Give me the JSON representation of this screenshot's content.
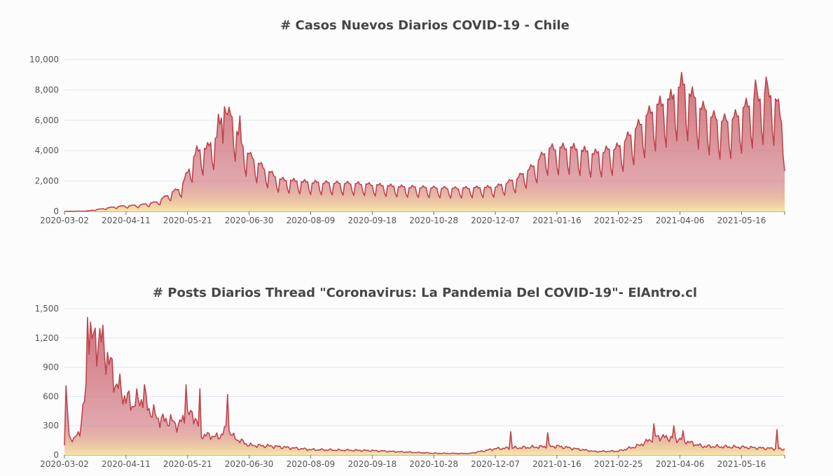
{
  "chart_data": [
    {
      "type": "area",
      "title": "# Casos Nuevos Diarios COVID-19 - Chile",
      "xlabel": "",
      "ylabel": "",
      "x_start": "2020-03-02",
      "x_end": "2021-06-13",
      "ylim": [
        0,
        10000
      ],
      "y_ticks": [
        "0",
        "2,000",
        "4,000",
        "6,000",
        "8,000",
        "10,000"
      ],
      "x_ticks": [
        "2020-03-02",
        "2020-04-11",
        "2020-05-21",
        "2020-06-30",
        "2020-08-09",
        "2020-09-18",
        "2020-10-28",
        "2020-12-07",
        "2021-01-16",
        "2021-02-25",
        "2021-04-06",
        "2021-05-16"
      ],
      "grid": true,
      "colors": {
        "line": "#bf444c",
        "fill_top": "#ce6e77",
        "fill_bottom": "#f7e6a8"
      },
      "keypoints": [
        {
          "x": "2020-03-02",
          "y": 0
        },
        {
          "x": "2020-03-16",
          "y": 20
        },
        {
          "x": "2020-03-25",
          "y": 150
        },
        {
          "x": "2020-04-05",
          "y": 330
        },
        {
          "x": "2020-04-20",
          "y": 420
        },
        {
          "x": "2020-05-01",
          "y": 620
        },
        {
          "x": "2020-05-10",
          "y": 1200
        },
        {
          "x": "2020-05-17",
          "y": 1600
        },
        {
          "x": "2020-05-21",
          "y": 2600
        },
        {
          "x": "2020-05-27",
          "y": 4000
        },
        {
          "x": "2020-06-03",
          "y": 4200
        },
        {
          "x": "2020-06-09",
          "y": 5000
        },
        {
          "x": "2020-06-14",
          "y": 6700
        },
        {
          "x": "2020-06-20",
          "y": 6000
        },
        {
          "x": "2020-06-25",
          "y": 4400
        },
        {
          "x": "2020-07-01",
          "y": 3600
        },
        {
          "x": "2020-07-10",
          "y": 2800
        },
        {
          "x": "2020-07-20",
          "y": 2100
        },
        {
          "x": "2020-08-10",
          "y": 1900
        },
        {
          "x": "2020-09-10",
          "y": 1800
        },
        {
          "x": "2020-10-10",
          "y": 1600
        },
        {
          "x": "2020-11-10",
          "y": 1500
        },
        {
          "x": "2020-12-07",
          "y": 1600
        },
        {
          "x": "2020-12-20",
          "y": 2100
        },
        {
          "x": "2021-01-01",
          "y": 3000
        },
        {
          "x": "2021-01-10",
          "y": 4100
        },
        {
          "x": "2021-01-25",
          "y": 4200
        },
        {
          "x": "2021-02-10",
          "y": 3800
        },
        {
          "x": "2021-02-25",
          "y": 4200
        },
        {
          "x": "2021-03-10",
          "y": 5600
        },
        {
          "x": "2021-03-20",
          "y": 6800
        },
        {
          "x": "2021-04-01",
          "y": 7500
        },
        {
          "x": "2021-04-07",
          "y": 8500
        },
        {
          "x": "2021-04-20",
          "y": 6800
        },
        {
          "x": "2021-05-01",
          "y": 5900
        },
        {
          "x": "2021-05-10",
          "y": 6000
        },
        {
          "x": "2021-05-20",
          "y": 7000
        },
        {
          "x": "2021-06-01",
          "y": 7700
        },
        {
          "x": "2021-06-08",
          "y": 7400
        },
        {
          "x": "2021-06-13",
          "y": 4600
        }
      ],
      "spikes": [
        {
          "x": "2021-04-07",
          "y": 9150
        },
        {
          "x": "2021-06-01",
          "y": 8850
        },
        {
          "x": "2021-05-25",
          "y": 8650
        },
        {
          "x": "2020-06-14",
          "y": 6900
        },
        {
          "x": "2020-06-10",
          "y": 6400
        },
        {
          "x": "2020-06-24",
          "y": 6300
        }
      ],
      "weekly_dip": 0.42
    },
    {
      "type": "area",
      "title": "# Posts Diarios Thread \"Coronavirus: La Pandemia Del COVID-19\"- ElAntro.cl",
      "xlabel": "",
      "ylabel": "",
      "x_start": "2020-03-02",
      "x_end": "2021-06-13",
      "ylim": [
        0,
        1500
      ],
      "y_ticks": [
        "0",
        "300",
        "600",
        "900",
        "1,200",
        "1,500"
      ],
      "x_ticks": [
        "2020-03-02",
        "2020-04-11",
        "2020-05-21",
        "2020-06-30",
        "2020-08-09",
        "2020-09-18",
        "2020-10-28",
        "2020-12-07",
        "2021-01-16",
        "2021-02-25",
        "2021-04-06",
        "2021-05-16"
      ],
      "grid": true,
      "colors": {
        "line": "#bf444c",
        "fill_top": "#ce6e77",
        "fill_bottom": "#f7e6a8"
      },
      "keypoints": [
        {
          "x": "2020-03-02",
          "y": 100
        },
        {
          "x": "2020-03-03",
          "y": 710
        },
        {
          "x": "2020-03-05",
          "y": 200
        },
        {
          "x": "2020-03-08",
          "y": 150
        },
        {
          "x": "2020-03-12",
          "y": 250
        },
        {
          "x": "2020-03-16",
          "y": 650
        },
        {
          "x": "2020-03-17",
          "y": 1400
        },
        {
          "x": "2020-03-20",
          "y": 1150
        },
        {
          "x": "2020-03-25",
          "y": 1200
        },
        {
          "x": "2020-03-30",
          "y": 1000
        },
        {
          "x": "2020-04-04",
          "y": 750
        },
        {
          "x": "2020-04-10",
          "y": 600
        },
        {
          "x": "2020-04-15",
          "y": 520
        },
        {
          "x": "2020-04-22",
          "y": 580
        },
        {
          "x": "2020-04-27",
          "y": 450
        },
        {
          "x": "2020-05-03",
          "y": 360
        },
        {
          "x": "2020-05-10",
          "y": 350
        },
        {
          "x": "2020-05-15",
          "y": 300
        },
        {
          "x": "2020-05-20",
          "y": 400
        },
        {
          "x": "2020-05-25",
          "y": 420
        },
        {
          "x": "2020-05-30",
          "y": 200
        },
        {
          "x": "2020-06-05",
          "y": 200
        },
        {
          "x": "2020-06-10",
          "y": 180
        },
        {
          "x": "2020-06-16",
          "y": 280
        },
        {
          "x": "2020-06-20",
          "y": 180
        },
        {
          "x": "2020-06-30",
          "y": 100
        },
        {
          "x": "2020-07-15",
          "y": 90
        },
        {
          "x": "2020-08-09",
          "y": 55
        },
        {
          "x": "2020-09-18",
          "y": 45
        },
        {
          "x": "2020-10-28",
          "y": 18
        },
        {
          "x": "2020-11-20",
          "y": 15
        },
        {
          "x": "2020-12-07",
          "y": 65
        },
        {
          "x": "2021-01-16",
          "y": 90
        },
        {
          "x": "2021-02-10",
          "y": 35
        },
        {
          "x": "2021-02-25",
          "y": 40
        },
        {
          "x": "2021-03-10",
          "y": 95
        },
        {
          "x": "2021-03-22",
          "y": 190
        },
        {
          "x": "2021-04-06",
          "y": 160
        },
        {
          "x": "2021-04-20",
          "y": 90
        },
        {
          "x": "2021-05-16",
          "y": 80
        },
        {
          "x": "2021-06-13",
          "y": 60
        }
      ],
      "spikes": [
        {
          "x": "2020-03-03",
          "y": 710
        },
        {
          "x": "2020-03-17",
          "y": 1410
        },
        {
          "x": "2020-04-23",
          "y": 720
        },
        {
          "x": "2020-05-20",
          "y": 720
        },
        {
          "x": "2020-05-29",
          "y": 680
        },
        {
          "x": "2020-06-16",
          "y": 620
        },
        {
          "x": "2020-12-17",
          "y": 240
        },
        {
          "x": "2021-01-10",
          "y": 230
        },
        {
          "x": "2021-03-20",
          "y": 320
        },
        {
          "x": "2021-04-02",
          "y": 300
        },
        {
          "x": "2021-04-08",
          "y": 250
        },
        {
          "x": "2021-06-08",
          "y": 260
        }
      ],
      "weekly_dip": 0.0
    }
  ]
}
